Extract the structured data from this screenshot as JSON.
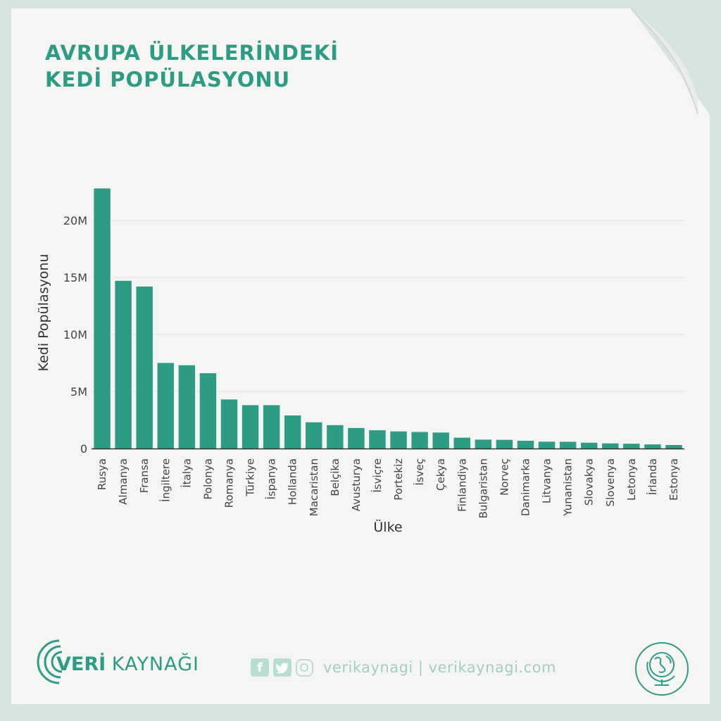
{
  "title": {
    "line1": "AVRUPA ÜLKELERİNDEKİ",
    "line2": "KEDİ POPÜLASYONU"
  },
  "colors": {
    "bar": "#2e9c85",
    "accent": "#2e9c85",
    "social": "#b8ddd3",
    "background": "#d6e4e1",
    "paper": "#f5f5f4"
  },
  "chart_data": {
    "type": "bar",
    "xlabel": "Ülke",
    "ylabel": "Kedi Popülasyonu",
    "ylim": [
      0,
      23000000
    ],
    "yticks": [
      0,
      5000000,
      10000000,
      15000000,
      20000000
    ],
    "ytick_labels": [
      "0",
      "5M",
      "10M",
      "15M",
      "20M"
    ],
    "grid": true,
    "categories": [
      "Rusya",
      "Almanya",
      "Fransa",
      "İngiltere",
      "İtalya",
      "Polonya",
      "Romanya",
      "Türkiye",
      "İspanya",
      "Hollanda",
      "Macaristan",
      "Belçika",
      "Avusturya",
      "İsviçre",
      "Portekiz",
      "İsveç",
      "Çekya",
      "Finlandiya",
      "Bulgaristan",
      "Norveç",
      "Danimarka",
      "Litvanya",
      "Yunanistan",
      "Slovakya",
      "Slovenya",
      "Letonya",
      "İrlanda",
      "Estonya"
    ],
    "values": [
      22800000,
      14700000,
      14200000,
      7500000,
      7300000,
      6600000,
      4300000,
      3800000,
      3800000,
      2900000,
      2300000,
      2050000,
      1800000,
      1600000,
      1500000,
      1450000,
      1400000,
      950000,
      780000,
      760000,
      680000,
      600000,
      590000,
      510000,
      450000,
      420000,
      360000,
      310000
    ]
  },
  "footer": {
    "brand_bold": "VERİ",
    "brand_light": "KAYNAĞI",
    "social_f": "f",
    "social_text": "verikaynagi | verikaynagi.com"
  }
}
